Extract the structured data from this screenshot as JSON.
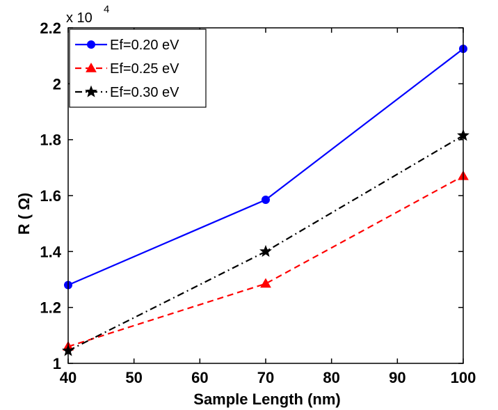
{
  "chart_data": {
    "type": "line",
    "xlabel": "Sample Length (nm)",
    "ylabel": "R ( Ω)",
    "y_multiplier_label": "x 10",
    "y_multiplier_exponent": "4",
    "xlim": [
      40,
      100
    ],
    "ylim": [
      1.0,
      2.2
    ],
    "x_ticks": [
      40,
      50,
      60,
      70,
      80,
      90,
      100
    ],
    "y_ticks": [
      1,
      1.2,
      1.4,
      1.6,
      1.8,
      2,
      2.2
    ],
    "y_tick_labels": [
      "1",
      "1.2",
      "1.4",
      "1.6",
      "1.8",
      "2",
      "2.2"
    ],
    "grid": false,
    "legend_position": "top-left",
    "x": [
      40,
      70,
      100
    ],
    "series": [
      {
        "name": "Ef=0.20 eV",
        "values": [
          1.28,
          1.585,
          2.125
        ],
        "color": "#0000ff",
        "dash": "solid",
        "marker": "circle"
      },
      {
        "name": "Ef=0.25 eV",
        "values": [
          1.06,
          1.285,
          1.67
        ],
        "color": "#ff0000",
        "dash": "dashed",
        "marker": "triangle"
      },
      {
        "name": "Ef=0.30 eV",
        "values": [
          1.045,
          1.4,
          1.815
        ],
        "color": "#000000",
        "dash": "dashdot",
        "marker": "star"
      }
    ]
  }
}
